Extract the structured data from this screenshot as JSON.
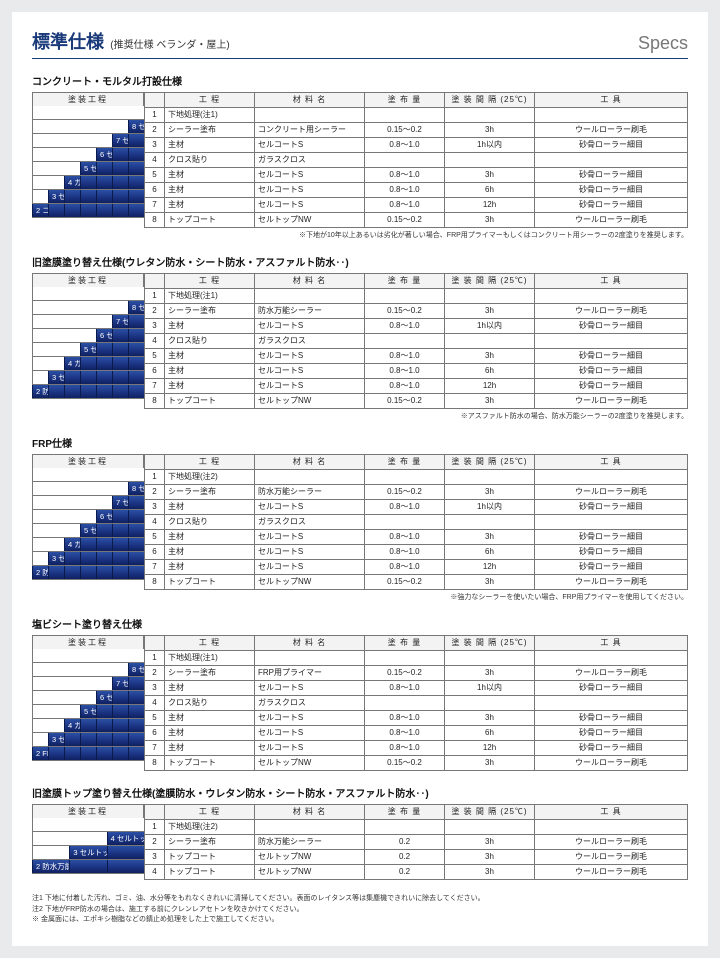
{
  "header": {
    "title_main": "標準仕様",
    "title_sub": "(推奨仕様 ベランダ・屋上)",
    "specs_label": "Specs"
  },
  "columns": {
    "stair_head": "塗装工程",
    "num": "",
    "koutei": "工 程",
    "zairyo": "材 料 名",
    "tohuryo": "塗 布 量",
    "kankaku": "塗 装 間 隔 (25℃)",
    "kougu": "工 具"
  },
  "sections": [
    {
      "title": "コンクリート・モルタル打設仕様",
      "stair": [
        "8 セルトップNW",
        "7 セルコートS防水材",
        "6 セルコートS防水材",
        "5 セルコートS防水材",
        "4 ガラスクロス",
        "3 セルコートS防水材",
        "2 コンクリート用シーラー"
      ],
      "rows": [
        {
          "n": "1",
          "k": "下地処理(注1)",
          "z": "",
          "t": "",
          "i": "",
          "g": ""
        },
        {
          "n": "2",
          "k": "シーラー塗布",
          "z": "コンクリート用シーラー",
          "t": "0.15〜0.2",
          "i": "3h",
          "g": "ウールローラー刷毛"
        },
        {
          "n": "3",
          "k": "主材",
          "z": "セルコートS",
          "t": "0.8〜1.0",
          "i": "1h以内",
          "g": "砂骨ローラー細目"
        },
        {
          "n": "4",
          "k": "クロス貼り",
          "z": "ガラスクロス",
          "t": "",
          "i": "",
          "g": ""
        },
        {
          "n": "5",
          "k": "主材",
          "z": "セルコートS",
          "t": "0.8〜1.0",
          "i": "3h",
          "g": "砂骨ローラー細目"
        },
        {
          "n": "6",
          "k": "主材",
          "z": "セルコートS",
          "t": "0.8〜1.0",
          "i": "6h",
          "g": "砂骨ローラー細目"
        },
        {
          "n": "7",
          "k": "主材",
          "z": "セルコートS",
          "t": "0.8〜1.0",
          "i": "12h",
          "g": "砂骨ローラー細目"
        },
        {
          "n": "8",
          "k": "トップコート",
          "z": "セルトップNW",
          "t": "0.15〜0.2",
          "i": "3h",
          "g": "ウールローラー刷毛"
        }
      ],
      "note": "※下地が10年以上あるいは劣化が著しい場合、FRP用プライマーもしくはコンクリート用シーラーの2度塗りを推奨します。"
    },
    {
      "title": "旧塗膜塗り替え仕様(ウレタン防水・シート防水・アスファルト防水‥)",
      "stair": [
        "8 セルトップNW",
        "7 セルコートS防水材",
        "6 セルコートS防水材",
        "5 セルコートS防水材",
        "4 ガラスクロス",
        "3 セルコートS防水材",
        "2 防水万能シーラー"
      ],
      "rows": [
        {
          "n": "1",
          "k": "下地処理(注1)",
          "z": "",
          "t": "",
          "i": "",
          "g": ""
        },
        {
          "n": "2",
          "k": "シーラー塗布",
          "z": "防水万能シーラー",
          "t": "0.15〜0.2",
          "i": "3h",
          "g": "ウールローラー刷毛"
        },
        {
          "n": "3",
          "k": "主材",
          "z": "セルコートS",
          "t": "0.8〜1.0",
          "i": "1h以内",
          "g": "砂骨ローラー細目"
        },
        {
          "n": "4",
          "k": "クロス貼り",
          "z": "ガラスクロス",
          "t": "",
          "i": "",
          "g": ""
        },
        {
          "n": "5",
          "k": "主材",
          "z": "セルコートS",
          "t": "0.8〜1.0",
          "i": "3h",
          "g": "砂骨ローラー細目"
        },
        {
          "n": "6",
          "k": "主材",
          "z": "セルコートS",
          "t": "0.8〜1.0",
          "i": "6h",
          "g": "砂骨ローラー細目"
        },
        {
          "n": "7",
          "k": "主材",
          "z": "セルコートS",
          "t": "0.8〜1.0",
          "i": "12h",
          "g": "砂骨ローラー細目"
        },
        {
          "n": "8",
          "k": "トップコート",
          "z": "セルトップNW",
          "t": "0.15〜0.2",
          "i": "3h",
          "g": "ウールローラー刷毛"
        }
      ],
      "note": "※アスファルト防水の場合、防水万能シーラーの2度塗りを推奨します。"
    },
    {
      "title": "FRP仕様",
      "stair": [
        "8 セルトップNW",
        "7 セルコートS防水材",
        "6 セルコートS防水材",
        "5 セルコートS防水材",
        "4 ガラスクロス",
        "3 セルコートS防水材",
        "2 防水万能シーラー"
      ],
      "rows": [
        {
          "n": "1",
          "k": "下地処理(注2)",
          "z": "",
          "t": "",
          "i": "",
          "g": ""
        },
        {
          "n": "2",
          "k": "シーラー塗布",
          "z": "防水万能シーラー",
          "t": "0.15〜0.2",
          "i": "3h",
          "g": "ウールローラー刷毛"
        },
        {
          "n": "3",
          "k": "主材",
          "z": "セルコートS",
          "t": "0.8〜1.0",
          "i": "1h以内",
          "g": "砂骨ローラー細目"
        },
        {
          "n": "4",
          "k": "クロス貼り",
          "z": "ガラスクロス",
          "t": "",
          "i": "",
          "g": ""
        },
        {
          "n": "5",
          "k": "主材",
          "z": "セルコートS",
          "t": "0.8〜1.0",
          "i": "3h",
          "g": "砂骨ローラー細目"
        },
        {
          "n": "6",
          "k": "主材",
          "z": "セルコートS",
          "t": "0.8〜1.0",
          "i": "6h",
          "g": "砂骨ローラー細目"
        },
        {
          "n": "7",
          "k": "主材",
          "z": "セルコートS",
          "t": "0.8〜1.0",
          "i": "12h",
          "g": "砂骨ローラー細目"
        },
        {
          "n": "8",
          "k": "トップコート",
          "z": "セルトップNW",
          "t": "0.15〜0.2",
          "i": "3h",
          "g": "ウールローラー刷毛"
        }
      ],
      "note": "※強力なシーラーを使いたい場合、FRP用プライマーを使用してください。"
    },
    {
      "title": "塩ビシート塗り替え仕様",
      "stair": [
        "8 セルトップNW",
        "7 セルコートS防水材",
        "6 セルコートS防水材",
        "5 セルコートS防水材",
        "4 ガラスクロス",
        "3 セルコートS防水材",
        "2 FRP用プライマー"
      ],
      "rows": [
        {
          "n": "1",
          "k": "下地処理(注1)",
          "z": "",
          "t": "",
          "i": "",
          "g": ""
        },
        {
          "n": "2",
          "k": "シーラー塗布",
          "z": "FRP用プライマー",
          "t": "0.15〜0.2",
          "i": "3h",
          "g": "ウールローラー刷毛"
        },
        {
          "n": "3",
          "k": "主材",
          "z": "セルコートS",
          "t": "0.8〜1.0",
          "i": "1h以内",
          "g": "砂骨ローラー細目"
        },
        {
          "n": "4",
          "k": "クロス貼り",
          "z": "ガラスクロス",
          "t": "",
          "i": "",
          "g": ""
        },
        {
          "n": "5",
          "k": "主材",
          "z": "セルコートS",
          "t": "0.8〜1.0",
          "i": "3h",
          "g": "砂骨ローラー細目"
        },
        {
          "n": "6",
          "k": "主材",
          "z": "セルコートS",
          "t": "0.8〜1.0",
          "i": "6h",
          "g": "砂骨ローラー細目"
        },
        {
          "n": "7",
          "k": "主材",
          "z": "セルコートS",
          "t": "0.8〜1.0",
          "i": "12h",
          "g": "砂骨ローラー細目"
        },
        {
          "n": "8",
          "k": "トップコート",
          "z": "セルトップNW",
          "t": "0.15〜0.2",
          "i": "3h",
          "g": "ウールローラー刷毛"
        }
      ],
      "note": ""
    },
    {
      "title": "旧塗膜トップ塗り替え仕様(塗膜防水・ウレタン防水・シート防水・アスファルト防水‥)",
      "stair": [
        "4 セルトップNW",
        "3 セルトップNW",
        "2 防水万能シーラー"
      ],
      "rows": [
        {
          "n": "1",
          "k": "下地処理(注2)",
          "z": "",
          "t": "",
          "i": "",
          "g": ""
        },
        {
          "n": "2",
          "k": "シーラー塗布",
          "z": "防水万能シーラー",
          "t": "0.2",
          "i": "3h",
          "g": "ウールローラー刷毛"
        },
        {
          "n": "3",
          "k": "トップコート",
          "z": "セルトップNW",
          "t": "0.2",
          "i": "3h",
          "g": "ウールローラー刷毛"
        },
        {
          "n": "4",
          "k": "トップコート",
          "z": "セルトップNW",
          "t": "0.2",
          "i": "3h",
          "g": "ウールローラー刷毛"
        }
      ],
      "note": ""
    }
  ],
  "footnotes": [
    "注1 下地に付着した汚れ、ゴミ、油、水分等をもれなくきれいに清掃してください。表面のレイタンス等は集塵機できれいに除去してください。",
    "注2 下地がFRP防水の場合は、施工する前にクレンレアセトンを吹きかけてください。",
    "※ 金属面には、エポキシ樹脂などの錆止め処理をした上で施工してください。"
  ]
}
